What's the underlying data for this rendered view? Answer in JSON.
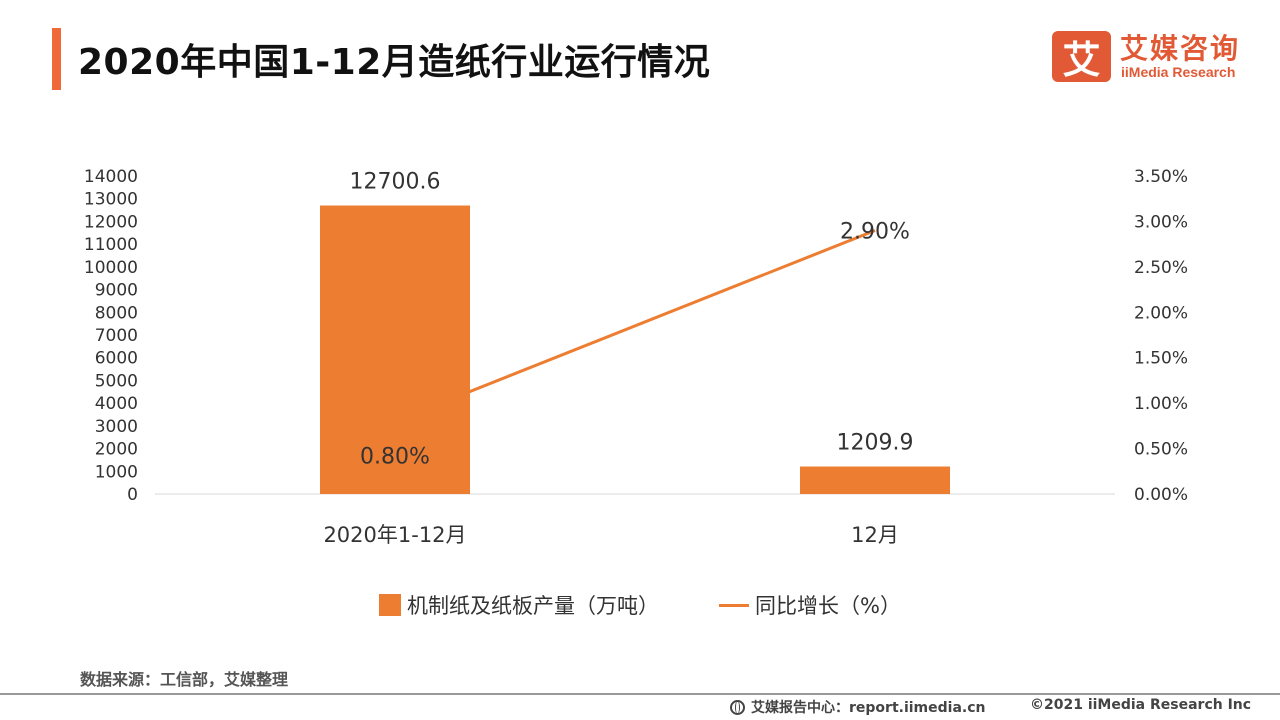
{
  "header": {
    "title": "2020年中国1-12月造纸行业运行情况",
    "logo_mark": "艾",
    "logo_cn": "艾媒咨询",
    "logo_en": "iiMedia Research"
  },
  "colors": {
    "accent": "#ef6a38",
    "bar": "#ed7d31",
    "line": "#ed7d31"
  },
  "chart_data": {
    "type": "bar",
    "categories": [
      "2020年1-12月",
      "12月"
    ],
    "series": [
      {
        "name": "机制纸及纸板产量（万吨）",
        "type": "bar",
        "axis": "left",
        "values": [
          12700.6,
          1209.9
        ],
        "labels": [
          "12700.6",
          "1209.9"
        ]
      },
      {
        "name": "同比增长（%）",
        "type": "line",
        "axis": "right",
        "values": [
          0.8,
          2.9
        ],
        "labels": [
          "0.80%",
          "2.90%"
        ]
      }
    ],
    "left_axis": {
      "min": 0,
      "max": 14000,
      "ticks": [
        "0",
        "1000",
        "2000",
        "3000",
        "4000",
        "5000",
        "6000",
        "7000",
        "8000",
        "9000",
        "10000",
        "11000",
        "12000",
        "13000",
        "14000"
      ]
    },
    "right_axis": {
      "min": 0,
      "max": 3.5,
      "ticks": [
        "0.00%",
        "0.50%",
        "1.00%",
        "1.50%",
        "2.00%",
        "2.50%",
        "3.00%",
        "3.50%"
      ]
    },
    "grid": false,
    "legend_position": "bottom"
  },
  "footer": {
    "source": "数据来源：工信部，艾媒整理",
    "report_center": "艾媒报告中心：report.iimedia.cn",
    "copyright": "©2021  iiMedia Research  Inc"
  }
}
